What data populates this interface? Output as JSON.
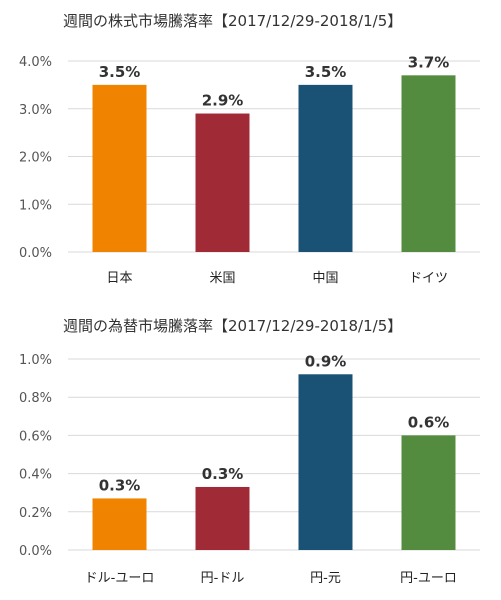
{
  "chart_data": [
    {
      "type": "bar",
      "title": "週間の株式市場騰落率【2017/12/29-2018/1/5】",
      "categories": [
        "日本",
        "米国",
        "中国",
        "ドイツ"
      ],
      "values": [
        3.5,
        2.9,
        3.5,
        3.7
      ],
      "data_labels": [
        "3.5%",
        "2.9%",
        "3.5%",
        "3.7%"
      ],
      "colors": [
        "#F08300",
        "#A02A36",
        "#1A5276",
        "#548C3F"
      ],
      "ylim": [
        0,
        4
      ],
      "yticks": [
        0,
        1,
        2,
        3,
        4
      ],
      "ytick_labels": [
        "0.0%",
        "1.0%",
        "2.0%",
        "3.0%",
        "4.0%"
      ],
      "grid": true,
      "legend": "none"
    },
    {
      "type": "bar",
      "title": "週間の為替市場騰落率【2017/12/29-2018/1/5】",
      "categories": [
        "ドル-ユーロ",
        "円-ドル",
        "円-元",
        "円-ユーロ"
      ],
      "values": [
        0.27,
        0.33,
        0.92,
        0.6
      ],
      "data_labels": [
        "0.3%",
        "0.3%",
        "0.9%",
        "0.6%"
      ],
      "colors": [
        "#F08300",
        "#A02A36",
        "#1A5276",
        "#548C3F"
      ],
      "ylim": [
        0,
        1
      ],
      "yticks": [
        0,
        0.2,
        0.4,
        0.6,
        0.8,
        1.0
      ],
      "ytick_labels": [
        "0.0%",
        "0.2%",
        "0.4%",
        "0.6%",
        "0.8%",
        "1.0%"
      ],
      "grid": true,
      "legend": "none"
    }
  ]
}
